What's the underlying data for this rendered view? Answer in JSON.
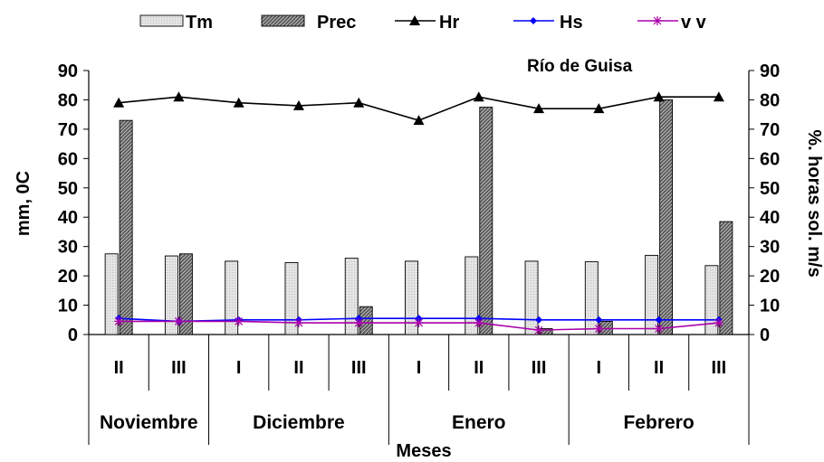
{
  "chart_data": {
    "type": "bar",
    "title": "Río de Guisa",
    "xlabel": "Meses",
    "ylabel_left": "mm, 0C",
    "ylabel_right": "%. horas sol. m/s",
    "ylim": [
      0,
      90
    ],
    "y_ticks": [
      "0",
      "10",
      "20",
      "30",
      "40",
      "50",
      "60",
      "70",
      "80",
      "90"
    ],
    "categories": [
      "II",
      "III",
      "I",
      "II",
      "III",
      "I",
      "II",
      "III",
      "I",
      "II",
      "III"
    ],
    "months": [
      "Noviembre",
      "Diciembre",
      "Enero",
      "Febrero"
    ],
    "legend_position": "top",
    "series": [
      {
        "name": "Tm",
        "kind": "bar",
        "style": "light",
        "values": [
          27.5,
          26.8,
          25,
          24.5,
          26,
          25,
          26.5,
          25,
          24.8,
          27,
          23.5
        ]
      },
      {
        "name": "Prec",
        "kind": "bar",
        "style": "dark",
        "values": [
          73,
          27.5,
          0,
          0,
          9.5,
          0,
          77.5,
          2,
          4.5,
          80,
          38.5
        ]
      },
      {
        "name": "Hr",
        "kind": "line",
        "color": "#000000",
        "marker": "triangle",
        "values": [
          79,
          81,
          79,
          78,
          79,
          73,
          81,
          77,
          77,
          81,
          81
        ]
      },
      {
        "name": "Hs",
        "kind": "line",
        "color": "#0000ff",
        "marker": "diamond",
        "values": [
          5.5,
          4.5,
          5,
          5,
          5.5,
          5.5,
          5.5,
          5,
          5,
          5,
          5
        ]
      },
      {
        "name": "v v",
        "kind": "line",
        "color": "#aa00aa",
        "marker": "star",
        "values": [
          4.5,
          4.5,
          4.5,
          4,
          4,
          4,
          4,
          1.5,
          2,
          2,
          4
        ]
      }
    ]
  }
}
